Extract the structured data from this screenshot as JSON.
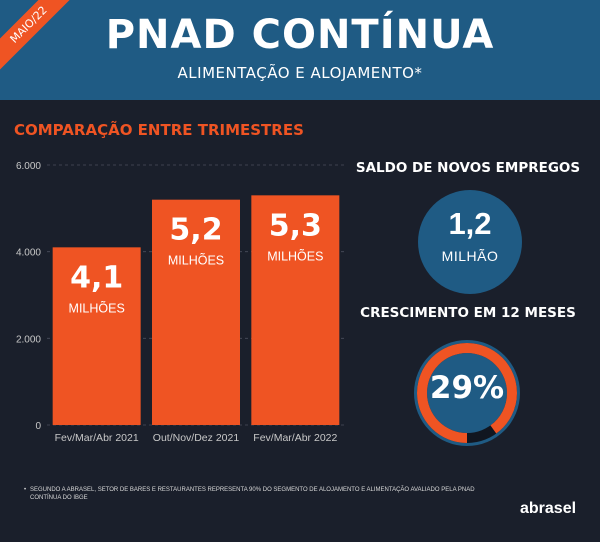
{
  "badge": "MAIO/22",
  "title": "PNAD CONTÍNUA",
  "subtitle": "ALIMENTAÇÃO E ALOJAMENTO*",
  "section_title": "COMPARAÇÃO ENTRE TRIMESTRES",
  "chart_data": {
    "type": "bar",
    "categories": [
      "Fev/Mar/Abr 2021",
      "Out/Nov/Dez 2021",
      "Fev/Mar/Abr 2022"
    ],
    "values": [
      4100,
      5200,
      5300
    ],
    "value_labels": [
      "4,1",
      "5,2",
      "5,3"
    ],
    "value_unit_label": "MILHÕES",
    "y_ticks": [
      "0",
      "2.000",
      "4.000",
      "6.000"
    ],
    "ylim": [
      0,
      6000
    ],
    "grid": true,
    "bar_color": "#ef5423"
  },
  "saldo": {
    "title": "SALDO DE NOVOS EMPREGOS",
    "value": "1,2",
    "unit": "MILHÃO"
  },
  "crescimento": {
    "title": "CRESCIMENTO EM 12 MESES",
    "value": "29%",
    "percent": 29
  },
  "footnote": {
    "bullet": "•",
    "text": "Segundo a Abrasel, setor de bares e restaurantes representa 90% do segmento de alojamento e alimentação avaliado pela PNAD Contínua do IBGE"
  },
  "logo": "abrasel",
  "colors": {
    "accent": "#ef5423",
    "blue": "#1f5b84",
    "background": "#1a1f2b"
  }
}
